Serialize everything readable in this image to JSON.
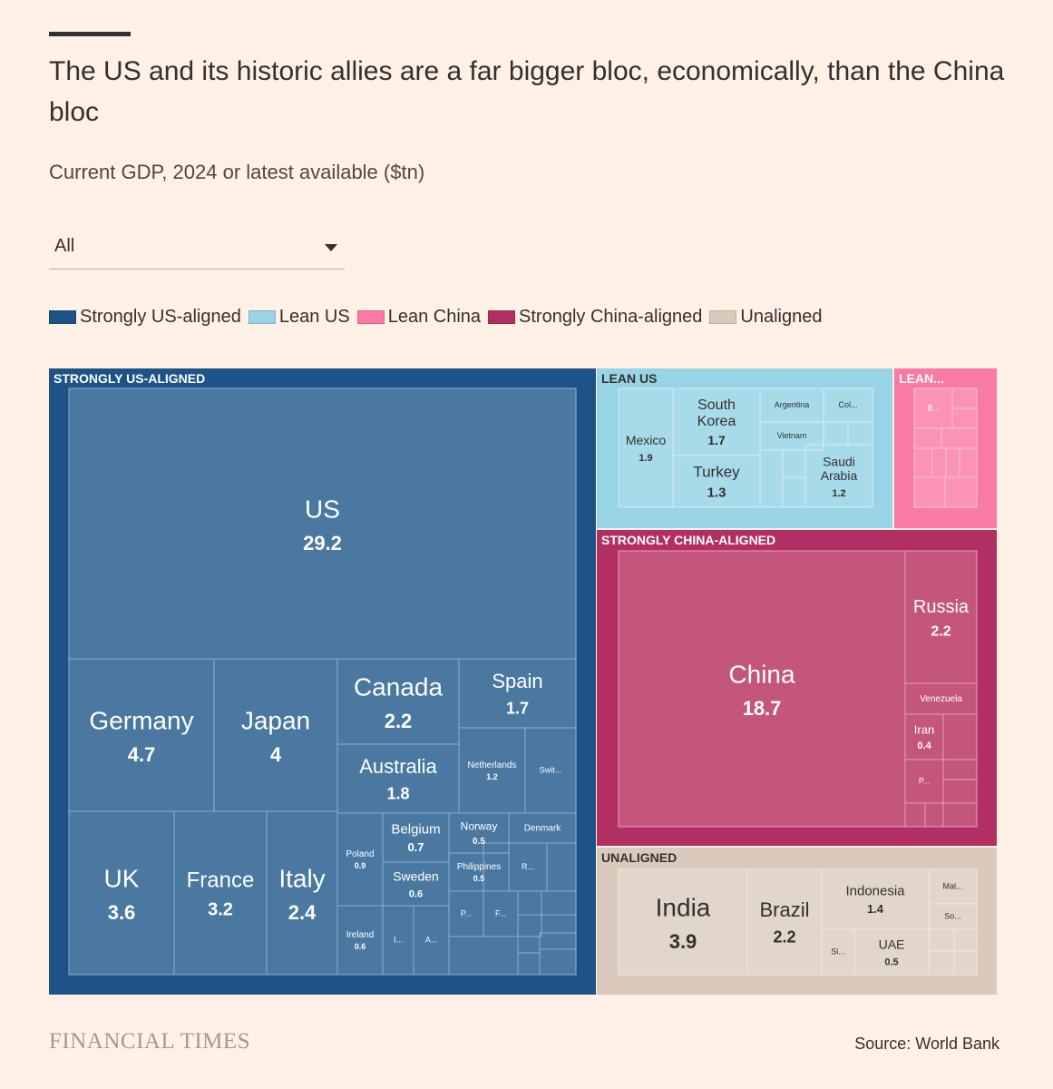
{
  "header": {
    "title": "The US and its historic allies are a far bigger bloc, economically, than the China bloc",
    "subtitle": "Current GDP, 2024 or latest available ($tn)"
  },
  "dropdown": {
    "selected": "All"
  },
  "colors": {
    "strongly_us": "#1e5387",
    "lean_us": "#98d3e6",
    "lean_china": "#f97aa5",
    "strongly_china": "#b12f62",
    "unaligned": "#d9cabd"
  },
  "legend": [
    {
      "label": "Strongly US-aligned",
      "color": "#1e5387"
    },
    {
      "label": "Lean US",
      "color": "#98d3e6"
    },
    {
      "label": "Lean China",
      "color": "#f97aa5"
    },
    {
      "label": "Strongly China-aligned",
      "color": "#b12f62"
    },
    {
      "label": "Unaligned",
      "color": "#d9cabd"
    }
  ],
  "chart_data": {
    "type": "treemap",
    "unit": "$tn",
    "groups": [
      {
        "name": "STRONGLY US-ALIGNED",
        "members": [
          {
            "label": "US",
            "value": 29.2
          },
          {
            "label": "Germany",
            "value": 4.7
          },
          {
            "label": "Japan",
            "value": 4
          },
          {
            "label": "UK",
            "value": 3.6
          },
          {
            "label": "France",
            "value": 3.2
          },
          {
            "label": "Italy",
            "value": 2.4
          },
          {
            "label": "Canada",
            "value": 2.2
          },
          {
            "label": "Australia",
            "value": 1.8
          },
          {
            "label": "Spain",
            "value": 1.7
          },
          {
            "label": "Netherlands",
            "value": 1.2
          },
          {
            "label": "Swit...",
            "value": null
          },
          {
            "label": "Belgium",
            "value": 0.7
          },
          {
            "label": "Sweden",
            "value": 0.6
          },
          {
            "label": "Poland",
            "value": 0.9
          },
          {
            "label": "Norway",
            "value": 0.5
          },
          {
            "label": "Philippines",
            "value": 0.5
          },
          {
            "label": "Denmark",
            "value": null
          },
          {
            "label": "R...",
            "value": null
          },
          {
            "label": "Ireland",
            "value": 0.6
          },
          {
            "label": "I...",
            "value": null
          },
          {
            "label": "A...",
            "value": null
          },
          {
            "label": "P...",
            "value": null
          },
          {
            "label": "F...",
            "value": null
          }
        ]
      },
      {
        "name": "LEAN US",
        "members": [
          {
            "label": "Mexico",
            "value": 1.9
          },
          {
            "label": "South Korea",
            "value": 1.7
          },
          {
            "label": "Turkey",
            "value": 1.3
          },
          {
            "label": "Saudi Arabia",
            "value": 1.2
          },
          {
            "label": "Argentina",
            "value": null
          },
          {
            "label": "Vietnam",
            "value": null
          },
          {
            "label": "Col...",
            "value": null
          }
        ]
      },
      {
        "name": "LEAN...",
        "members": [
          {
            "label": "B...",
            "value": null
          }
        ]
      },
      {
        "name": "STRONGLY CHINA-ALIGNED",
        "members": [
          {
            "label": "China",
            "value": 18.7
          },
          {
            "label": "Russia",
            "value": 2.2
          },
          {
            "label": "Venezuela",
            "value": null
          },
          {
            "label": "Iran",
            "value": 0.4
          },
          {
            "label": "P...",
            "value": null
          }
        ]
      },
      {
        "name": "UNALIGNED",
        "members": [
          {
            "label": "India",
            "value": 3.9
          },
          {
            "label": "Brazil",
            "value": 2.2
          },
          {
            "label": "Indonesia",
            "value": 1.4
          },
          {
            "label": "UAE",
            "value": 0.5
          },
          {
            "label": "Mal...",
            "value": null
          },
          {
            "label": "So...",
            "value": null
          },
          {
            "label": "Si...",
            "value": null
          }
        ]
      }
    ]
  },
  "footer": {
    "brand": "FINANCIAL TIMES",
    "source": "Source: World Bank"
  }
}
